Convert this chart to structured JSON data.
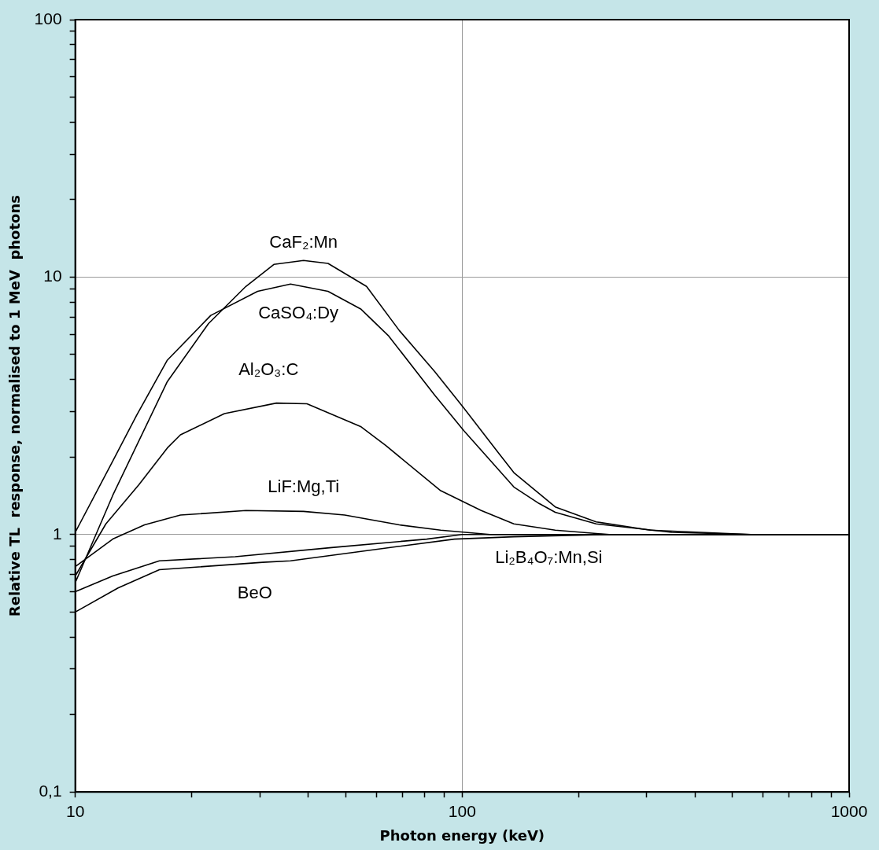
{
  "chart_data": {
    "type": "line",
    "xlabel": "Photon energy (keV)",
    "ylabel": "Relative TL  response, normalised to 1 MeV  photons",
    "log": "xy",
    "grid": true,
    "legend": false,
    "marker": "none",
    "line_style": "solid",
    "xlim": [
      10,
      1000
    ],
    "ylim": [
      0.1,
      100
    ],
    "xticks": [
      10,
      {
        "value": 20,
        "label": null
      },
      {
        "value": 30,
        "label": null
      },
      {
        "value": 40,
        "label": null
      },
      {
        "value": 50,
        "label": null
      },
      {
        "value": 60,
        "label": null
      },
      {
        "value": 70,
        "label": null
      },
      {
        "value": 80,
        "label": null
      },
      {
        "value": 90,
        "label": null
      },
      100,
      {
        "value": 200,
        "label": null
      },
      {
        "value": 300,
        "label": null
      },
      {
        "value": 400,
        "label": null
      },
      {
        "value": 500,
        "label": null
      },
      {
        "value": 600,
        "label": null
      },
      {
        "value": 700,
        "label": null
      },
      {
        "value": 800,
        "label": null
      },
      {
        "value": 900,
        "label": null
      },
      1000
    ],
    "yticks": [
      {
        "value": 0.1,
        "label": "0,1"
      },
      {
        "value": 0.2,
        "label": null
      },
      {
        "value": 0.3,
        "label": null
      },
      {
        "value": 0.4,
        "label": null
      },
      {
        "value": 0.5,
        "label": null
      },
      {
        "value": 0.6,
        "label": null
      },
      {
        "value": 0.7,
        "label": null
      },
      {
        "value": 0.8,
        "label": null
      },
      {
        "value": 0.9,
        "label": null
      },
      1,
      {
        "value": 2,
        "label": null
      },
      {
        "value": 3,
        "label": null
      },
      {
        "value": 4,
        "label": null
      },
      {
        "value": 5,
        "label": null
      },
      {
        "value": 6,
        "label": null
      },
      {
        "value": 7,
        "label": null
      },
      {
        "value": 8,
        "label": null
      },
      {
        "value": 9,
        "label": null
      },
      10,
      {
        "value": 20,
        "label": null
      },
      {
        "value": 30,
        "label": null
      },
      {
        "value": 40,
        "label": null
      },
      {
        "value": 50,
        "label": null
      },
      {
        "value": 60,
        "label": null
      },
      {
        "value": 70,
        "label": null
      },
      {
        "value": 80,
        "label": null
      },
      {
        "value": 90,
        "label": null
      },
      100
    ],
    "series": [
      {
        "name": "CaF₂:Mn",
        "color": "#000000",
        "x": [
          10,
          12.5,
          17.3,
          22.1,
          27.6,
          32.6,
          38.9,
          45,
          56.6,
          68.8,
          84.9,
          101,
          124,
          136,
          174,
          222,
          306,
          557,
          1000
        ],
        "values": [
          0.65,
          1.42,
          3.93,
          6.6,
          9.2,
          11.2,
          11.6,
          11.3,
          9.2,
          6.2,
          4.3,
          3.1,
          2.08,
          1.74,
          1.28,
          1.12,
          1.04,
          1.0,
          1.0
        ]
      },
      {
        "name": "CaSO₄:Dy",
        "color": "#000000",
        "x": [
          10,
          12.5,
          14.4,
          17.3,
          22.4,
          29.6,
          36,
          45,
          54.8,
          64.6,
          84.9,
          101,
          136,
          158,
          174,
          222,
          348,
          557,
          1000
        ],
        "values": [
          1.02,
          1.93,
          2.9,
          4.76,
          7.1,
          8.8,
          9.4,
          8.8,
          7.5,
          5.9,
          3.48,
          2.53,
          1.53,
          1.32,
          1.22,
          1.1,
          1.02,
          1.0,
          1.0
        ]
      },
      {
        "name": "Al₂O₃:C",
        "color": "#000000",
        "x": [
          10,
          12,
          14.6,
          17.3,
          18.7,
          24.3,
          33.1,
          39.7,
          54.8,
          63.4,
          88,
          112,
          136,
          174,
          240,
          1000
        ],
        "values": [
          0.69,
          1.1,
          1.56,
          2.17,
          2.44,
          2.95,
          3.24,
          3.22,
          2.62,
          2.22,
          1.48,
          1.24,
          1.1,
          1.04,
          1.0,
          1.0
        ]
      },
      {
        "name": "LiF:Mg,Ti",
        "color": "#000000",
        "x": [
          10,
          12.5,
          15.1,
          18.7,
          27.6,
          38.9,
          49.7,
          68.8,
          88,
          118,
          1000
        ],
        "values": [
          0.75,
          0.96,
          1.09,
          1.19,
          1.24,
          1.23,
          1.19,
          1.09,
          1.04,
          1.0,
          1.0
        ]
      },
      {
        "name": "Li₂B₄O₇:Mn,Si",
        "color": "#000000",
        "x": [
          10,
          12.5,
          16.5,
          25.9,
          46,
          81,
          100,
          1000
        ],
        "values": [
          0.6,
          0.69,
          0.79,
          0.82,
          0.89,
          0.96,
          1.0,
          1.0
        ]
      },
      {
        "name": "BeO",
        "color": "#000000",
        "x": [
          10,
          12.9,
          16.5,
          30.5,
          36,
          68.8,
          95.5,
          136,
          240,
          1000
        ],
        "values": [
          0.5,
          0.62,
          0.73,
          0.78,
          0.79,
          0.9,
          0.96,
          0.98,
          1.0,
          1.0
        ]
      }
    ]
  }
}
